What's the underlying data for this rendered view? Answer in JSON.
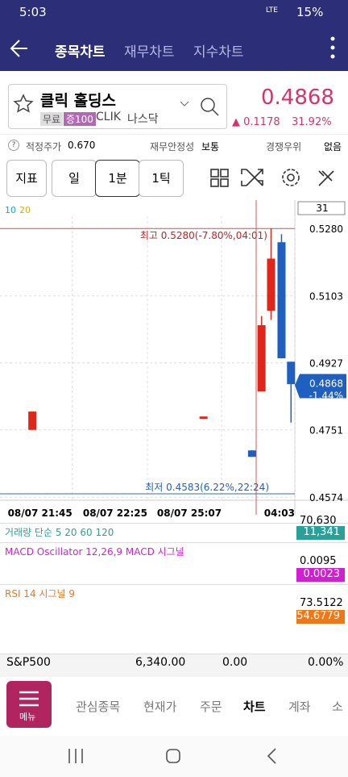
{
  "status_bar": {
    "time": "5:03",
    "battery": "15%",
    "network": "LTE"
  },
  "header": {
    "tabs": [
      "종목차트",
      "재무차트",
      "지수차트"
    ]
  },
  "stock": {
    "name": "클릭 홀딩스",
    "badges": [
      "무료",
      "증100"
    ],
    "ticker": "CLIK",
    "exchange": "나스닥",
    "price": "0.4868",
    "change": "▲ 0.1178",
    "change_pct": "31.92%"
  },
  "info": [
    {
      "label": "적정주가",
      "value": "0.670"
    },
    {
      "label": "재무안정성",
      "value": "보통"
    },
    {
      "label": "경쟁우위",
      "value": "없음"
    }
  ],
  "toolbar": [
    "지표",
    "일",
    "1분",
    "1틱"
  ],
  "chart_data": {
    "type": "candlestick",
    "legend": [
      {
        "name": "10",
        "color": "#1aa3c8"
      },
      {
        "name": "20",
        "color": "#e8a317"
      }
    ],
    "period_box": "31",
    "x": [
      3.4,
      21.4,
      26.5,
      27.5,
      28.5,
      29.6,
      30.6
    ],
    "open": [
      0.4751,
      0.478,
      0.4697,
      0.4852,
      0.5064,
      0.5244,
      0.493
    ],
    "high": [
      0.4799,
      0.4786,
      0.4697,
      0.505,
      0.528,
      0.5265,
      0.493
    ],
    "low": [
      0.4751,
      0.478,
      0.468,
      0.4852,
      0.504,
      0.4939,
      0.477
    ],
    "close": [
      0.4799,
      0.4786,
      0.468,
      0.5026,
      0.5201,
      0.4939,
      0.4871
    ],
    "up_color": "#e0261b",
    "down_color": "#1f5fbf",
    "xlim": [
      0,
      31
    ],
    "xticks": [
      {
        "value": 7.6,
        "label": "08/07 21:45"
      },
      {
        "value": 15.5,
        "label": "08/07 22:25"
      },
      {
        "value": 23.3,
        "label": "08/07 25:07"
      },
      {
        "value": 31,
        "label": "04:03"
      }
    ],
    "ylim": [
      0.4566,
      0.5325
    ],
    "yticks": [
      {
        "value": 0.528,
        "label": "0.5280"
      },
      {
        "value": 0.5103,
        "label": "0.5103"
      },
      {
        "value": 0.4927,
        "label": "0.4927"
      },
      {
        "value": 0.4751,
        "label": "0.4751"
      },
      {
        "value": 0.4574,
        "label": "0.4574"
      }
    ],
    "current_price": {
      "value": 0.4868,
      "label": "0.4868"
    },
    "current_change": "-1.44%",
    "annotations": {
      "high": "최고 0.5280(-7.80%,04:01)",
      "low": "최저 0.4583(6.22%,22:24)"
    }
  },
  "indicators": [
    {
      "title": "거래량 단순 5 20 60 120",
      "top": "70,630",
      "current": "11,341",
      "color": "#2aa198"
    },
    {
      "title": "MACD Oscillator 12,26,9 MACD 시그널",
      "top": "0.0095",
      "current": "0.0023",
      "color": "#d21ed2"
    },
    {
      "title": "RSI 14 시그널 9",
      "top": "73.5122",
      "current": "54.6779",
      "color": "#f07814"
    }
  ],
  "market": [
    "S&P500",
    "6,340.00",
    "0.00",
    "0.00%"
  ],
  "bottom_nav": {
    "menu": "메뉴",
    "items": [
      "관심종목",
      "현재가",
      "주문",
      "차트",
      "계좌",
      "소"
    ]
  }
}
